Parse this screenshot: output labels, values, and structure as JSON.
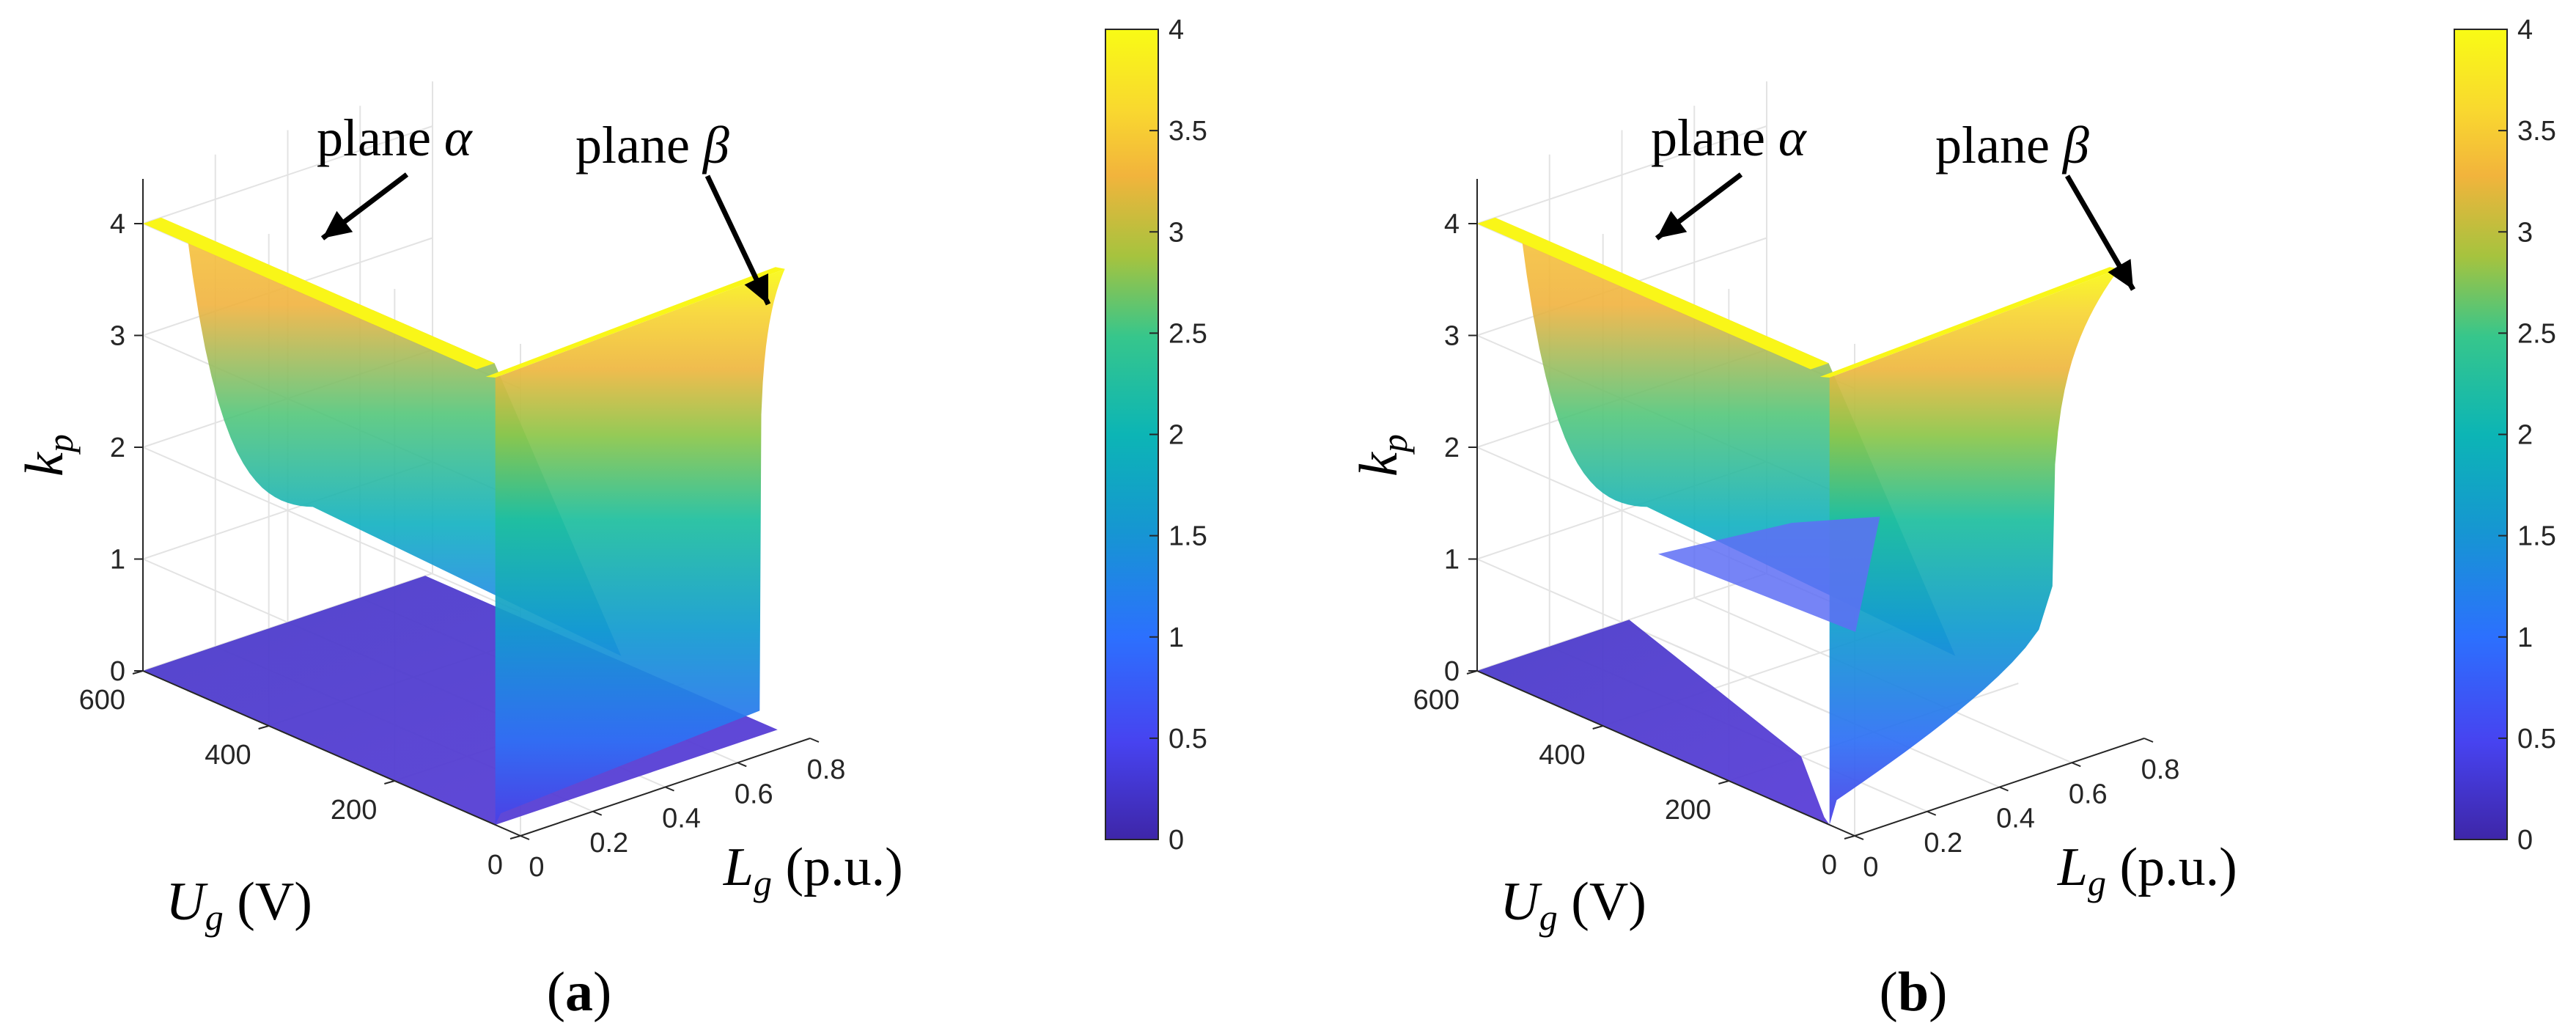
{
  "figure": {
    "panels": [
      {
        "label": "a"
      },
      {
        "label": "b"
      }
    ]
  },
  "chart_data": [
    {
      "type": "surface3d",
      "panel": "(a)",
      "x_axis": {
        "label_main": "L",
        "label_sub": "g",
        "label_unit": "(p.u.)",
        "ticks": [
          "0",
          "0.2",
          "0.4",
          "0.6",
          "0.8"
        ],
        "range": [
          0,
          0.8
        ]
      },
      "y_axis": {
        "label_main": "U",
        "label_sub": "g",
        "label_unit": "(V)",
        "ticks": [
          "0",
          "200",
          "400",
          "600"
        ],
        "range": [
          0,
          600
        ]
      },
      "z_axis": {
        "label_main": "k",
        "label_sub": "p",
        "ticks": [
          "0",
          "1",
          "2",
          "3",
          "4"
        ],
        "range": [
          0,
          4
        ]
      },
      "colorbar": {
        "ticks": [
          "0",
          "0.5",
          "1",
          "1.5",
          "2",
          "2.5",
          "3",
          "3.5",
          "4"
        ],
        "range": [
          0,
          4
        ],
        "colormap": "parula"
      },
      "annotations": [
        {
          "prefix": "plane ",
          "symbol": "α"
        },
        {
          "prefix": "plane ",
          "symbol": "β"
        }
      ],
      "surfaces": [
        {
          "id": "alpha",
          "description_value": "kp ≈ 4 along Lg ≈ 0, decreasing with Lg near Ug = 600 V",
          "kp_max": 4,
          "kp_min": 0
        },
        {
          "id": "beta",
          "description_value": "kp ≈ 4 along Ug ≈ 0, decreasing toward Lg = 0.8 p.u.",
          "kp_max": 4,
          "kp_min": 0
        }
      ]
    },
    {
      "type": "surface3d",
      "panel": "(b)",
      "x_axis": {
        "label_main": "L",
        "label_sub": "g",
        "label_unit": "(p.u.)",
        "ticks": [
          "0",
          "0.2",
          "0.4",
          "0.6",
          "0.8"
        ],
        "range": [
          0,
          0.8
        ]
      },
      "y_axis": {
        "label_main": "U",
        "label_sub": "g",
        "label_unit": "(V)",
        "ticks": [
          "0",
          "200",
          "400",
          "600"
        ],
        "range": [
          0,
          600
        ]
      },
      "z_axis": {
        "label_main": "k",
        "label_sub": "p",
        "ticks": [
          "0",
          "1",
          "2",
          "3",
          "4"
        ],
        "range": [
          0,
          4
        ]
      },
      "colorbar": {
        "ticks": [
          "0",
          "0.5",
          "1",
          "1.5",
          "2",
          "2.5",
          "3",
          "3.5",
          "4"
        ],
        "range": [
          0,
          4
        ],
        "colormap": "parula"
      },
      "annotations": [
        {
          "prefix": "plane ",
          "symbol": "α"
        },
        {
          "prefix": "plane ",
          "symbol": "β"
        }
      ],
      "surfaces": [
        {
          "id": "alpha",
          "description_value": "kp ≈ 4 along Lg ≈ 0, decreasing with Lg near Ug = 600 V",
          "kp_max": 4,
          "kp_min": 0
        },
        {
          "id": "beta",
          "description_value": "kp ≈ 4 along Ug ≈ 0, curving down near Lg = 0 and Lg = 0.8 p.u.",
          "kp_max": 4,
          "kp_min": 0.9
        }
      ]
    }
  ],
  "colors": {
    "parula_stops": [
      "#3e26a8",
      "#4743f0",
      "#2c70fe",
      "#1696d2",
      "#0cb5b5",
      "#36c68c",
      "#a6c33e",
      "#f2b43c",
      "#f9d82f",
      "#f9fb15"
    ],
    "grid": "#e3e3e3",
    "axis": "#262626"
  }
}
